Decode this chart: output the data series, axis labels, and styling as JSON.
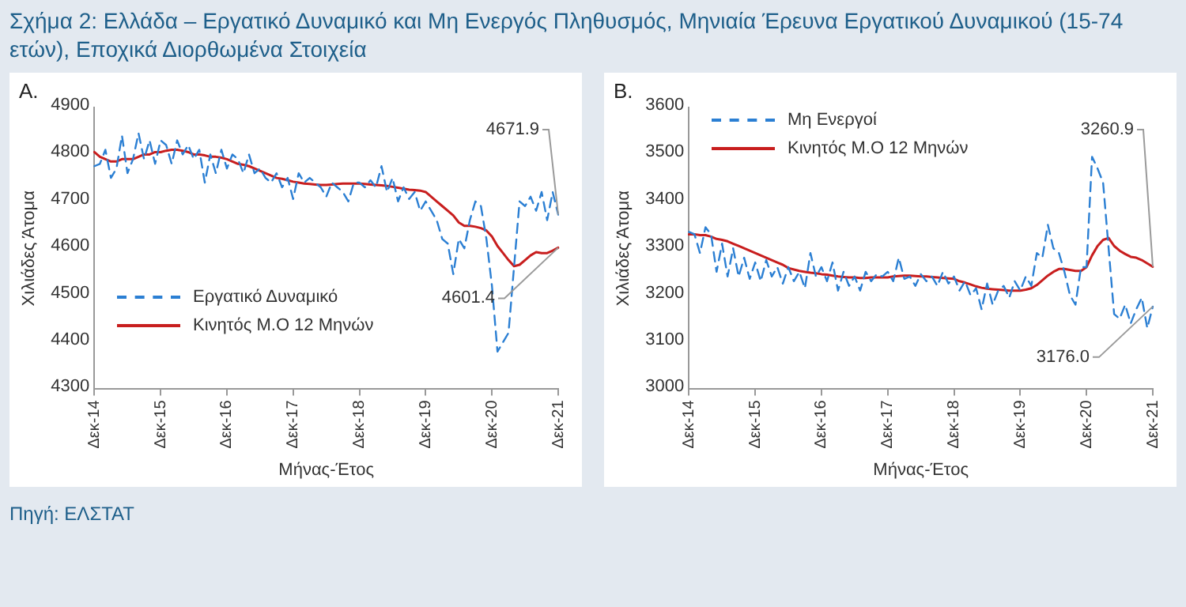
{
  "chart_data": [
    {
      "type": "line",
      "title": "Σχήμα 2: Ελλάδα – Εργατικό Δυναμικό και Μη Ενεργός Πληθυσμός, Μηνιαία Έρευνα Εργατικού Δυναμικού (15-74 ετών), Εποχικά Διορθωμένα Στοιχεία",
      "subtitle": "Α.",
      "xlabel": "Μήνας-Έτος",
      "ylabel": "Χιλιάδες Άτομα",
      "categories": [
        "Δεκ-14",
        null,
        null,
        null,
        null,
        null,
        null,
        null,
        null,
        null,
        null,
        null,
        "Δεκ-15",
        null,
        null,
        null,
        null,
        null,
        null,
        null,
        null,
        null,
        null,
        null,
        "Δεκ-16",
        null,
        null,
        null,
        null,
        null,
        null,
        null,
        null,
        null,
        null,
        null,
        "Δεκ-17",
        null,
        null,
        null,
        null,
        null,
        null,
        null,
        null,
        null,
        null,
        null,
        "Δεκ-18",
        null,
        null,
        null,
        null,
        null,
        null,
        null,
        null,
        null,
        null,
        null,
        "Δεκ-19",
        null,
        null,
        null,
        null,
        null,
        null,
        null,
        null,
        null,
        null,
        null,
        "Δεκ-20",
        null,
        null,
        null,
        null,
        null,
        null,
        null,
        null,
        null,
        null,
        null,
        "Δεκ-21"
      ],
      "series": [
        {
          "name": "Εργατικό Δυναμικό",
          "color": "#2b7fd3",
          "line_style": "dashed",
          "values": [
            4775,
            4780,
            4810,
            4750,
            4770,
            4840,
            4760,
            4790,
            4845,
            4790,
            4830,
            4780,
            4830,
            4820,
            4780,
            4830,
            4800,
            4820,
            4790,
            4810,
            4740,
            4800,
            4760,
            4810,
            4770,
            4800,
            4790,
            4760,
            4800,
            4760,
            4770,
            4750,
            4740,
            4760,
            4730,
            4750,
            4705,
            4760,
            4740,
            4750,
            4740,
            4730,
            4710,
            4740,
            4730,
            4720,
            4700,
            4740,
            4740,
            4730,
            4745,
            4730,
            4775,
            4720,
            4750,
            4700,
            4730,
            4705,
            4720,
            4680,
            4700,
            4680,
            4660,
            4620,
            4610,
            4545,
            4620,
            4600,
            4660,
            4700,
            4690,
            4620,
            4520,
            4380,
            4400,
            4420,
            4560,
            4700,
            4690,
            4710,
            4680,
            4720,
            4660,
            4720,
            4671.9
          ]
        },
        {
          "name": "Κινητός Μ.Ο 12 Μηνών",
          "color": "#c81e1e",
          "line_style": "solid",
          "values": [
            4805,
            4795,
            4790,
            4785,
            4785,
            4790,
            4790,
            4790,
            4795,
            4800,
            4800,
            4805,
            4805,
            4808,
            4810,
            4810,
            4808,
            4805,
            4800,
            4800,
            4798,
            4795,
            4795,
            4793,
            4790,
            4785,
            4780,
            4778,
            4775,
            4770,
            4765,
            4760,
            4755,
            4750,
            4748,
            4745,
            4742,
            4740,
            4738,
            4737,
            4736,
            4735,
            4735,
            4736,
            4737,
            4738,
            4738,
            4738,
            4738,
            4737,
            4736,
            4735,
            4734,
            4733,
            4731,
            4729,
            4727,
            4725,
            4724,
            4723,
            4720,
            4710,
            4700,
            4690,
            4680,
            4670,
            4655,
            4648,
            4648,
            4646,
            4643,
            4638,
            4625,
            4605,
            4590,
            4575,
            4562,
            4565,
            4575,
            4585,
            4592,
            4590,
            4590,
            4595,
            4601.4
          ]
        }
      ],
      "ylim": [
        4300,
        4900
      ],
      "yticks": [
        4300,
        4400,
        4500,
        4600,
        4700,
        4800,
        4900
      ],
      "legend": "bottom left",
      "annotations": [
        {
          "text": "4671.9",
          "x": "Δεκ-21",
          "y": 4671.9
        },
        {
          "text": "4601.4",
          "x": "Δεκ-21",
          "y": 4601.4
        },
        "Πηγή: ΕΛΣΤΑΤ"
      ]
    },
    {
      "type": "line",
      "subtitle": "Β.",
      "xlabel": "Μήνας-Έτος",
      "ylabel": "Χιλιάδες Άτομα",
      "categories": [
        "Δεκ-14",
        null,
        null,
        null,
        null,
        null,
        null,
        null,
        null,
        null,
        null,
        null,
        "Δεκ-15",
        null,
        null,
        null,
        null,
        null,
        null,
        null,
        null,
        null,
        null,
        null,
        "Δεκ-16",
        null,
        null,
        null,
        null,
        null,
        null,
        null,
        null,
        null,
        null,
        null,
        "Δεκ-17",
        null,
        null,
        null,
        null,
        null,
        null,
        null,
        null,
        null,
        null,
        null,
        "Δεκ-18",
        null,
        null,
        null,
        null,
        null,
        null,
        null,
        null,
        null,
        null,
        null,
        "Δεκ-19",
        null,
        null,
        null,
        null,
        null,
        null,
        null,
        null,
        null,
        null,
        null,
        "Δεκ-20",
        null,
        null,
        null,
        null,
        null,
        null,
        null,
        null,
        null,
        null,
        null,
        "Δεκ-21"
      ],
      "series": [
        {
          "name": "Μη Ενεργοί",
          "color": "#2b7fd3",
          "line_style": "dashed",
          "values": [
            3335,
            3330,
            3290,
            3345,
            3330,
            3250,
            3310,
            3240,
            3300,
            3240,
            3280,
            3235,
            3270,
            3230,
            3275,
            3240,
            3260,
            3225,
            3260,
            3230,
            3250,
            3215,
            3290,
            3240,
            3260,
            3230,
            3270,
            3210,
            3250,
            3220,
            3240,
            3210,
            3250,
            3230,
            3245,
            3240,
            3250,
            3230,
            3280,
            3235,
            3240,
            3220,
            3245,
            3230,
            3240,
            3220,
            3250,
            3225,
            3240,
            3210,
            3230,
            3200,
            3215,
            3170,
            3225,
            3180,
            3210,
            3220,
            3195,
            3230,
            3210,
            3240,
            3220,
            3290,
            3280,
            3350,
            3300,
            3290,
            3250,
            3200,
            3180,
            3260,
            3260,
            3495,
            3470,
            3440,
            3300,
            3160,
            3150,
            3180,
            3140,
            3170,
            3195,
            3130,
            3176.0
          ]
        },
        {
          "name": "Κινητός Μ.Ο 12 Μηνών",
          "color": "#c81e1e",
          "line_style": "solid",
          "values": [
            3330,
            3330,
            3328,
            3328,
            3325,
            3320,
            3318,
            3315,
            3310,
            3305,
            3300,
            3295,
            3290,
            3285,
            3280,
            3275,
            3270,
            3265,
            3258,
            3255,
            3252,
            3250,
            3248,
            3247,
            3245,
            3244,
            3242,
            3240,
            3239,
            3238,
            3238,
            3237,
            3237,
            3238,
            3238,
            3238,
            3238,
            3240,
            3241,
            3242,
            3242,
            3241,
            3240,
            3240,
            3239,
            3238,
            3237,
            3236,
            3235,
            3230,
            3227,
            3223,
            3219,
            3216,
            3214,
            3213,
            3212,
            3211,
            3210,
            3210,
            3210,
            3212,
            3215,
            3222,
            3232,
            3242,
            3250,
            3256,
            3256,
            3254,
            3252,
            3252,
            3260,
            3285,
            3305,
            3318,
            3322,
            3305,
            3295,
            3288,
            3282,
            3280,
            3275,
            3268,
            3260.9
          ]
        }
      ],
      "ylim": [
        3000,
        3600
      ],
      "yticks": [
        3000,
        3100,
        3200,
        3300,
        3400,
        3500,
        3600
      ],
      "legend": "top left",
      "annotations": [
        {
          "text": "3260.9",
          "x": "Δεκ-21",
          "y": 3260.9
        },
        {
          "text": "3176.0",
          "x": "Δεκ-21",
          "y": 3176.0
        }
      ]
    }
  ]
}
